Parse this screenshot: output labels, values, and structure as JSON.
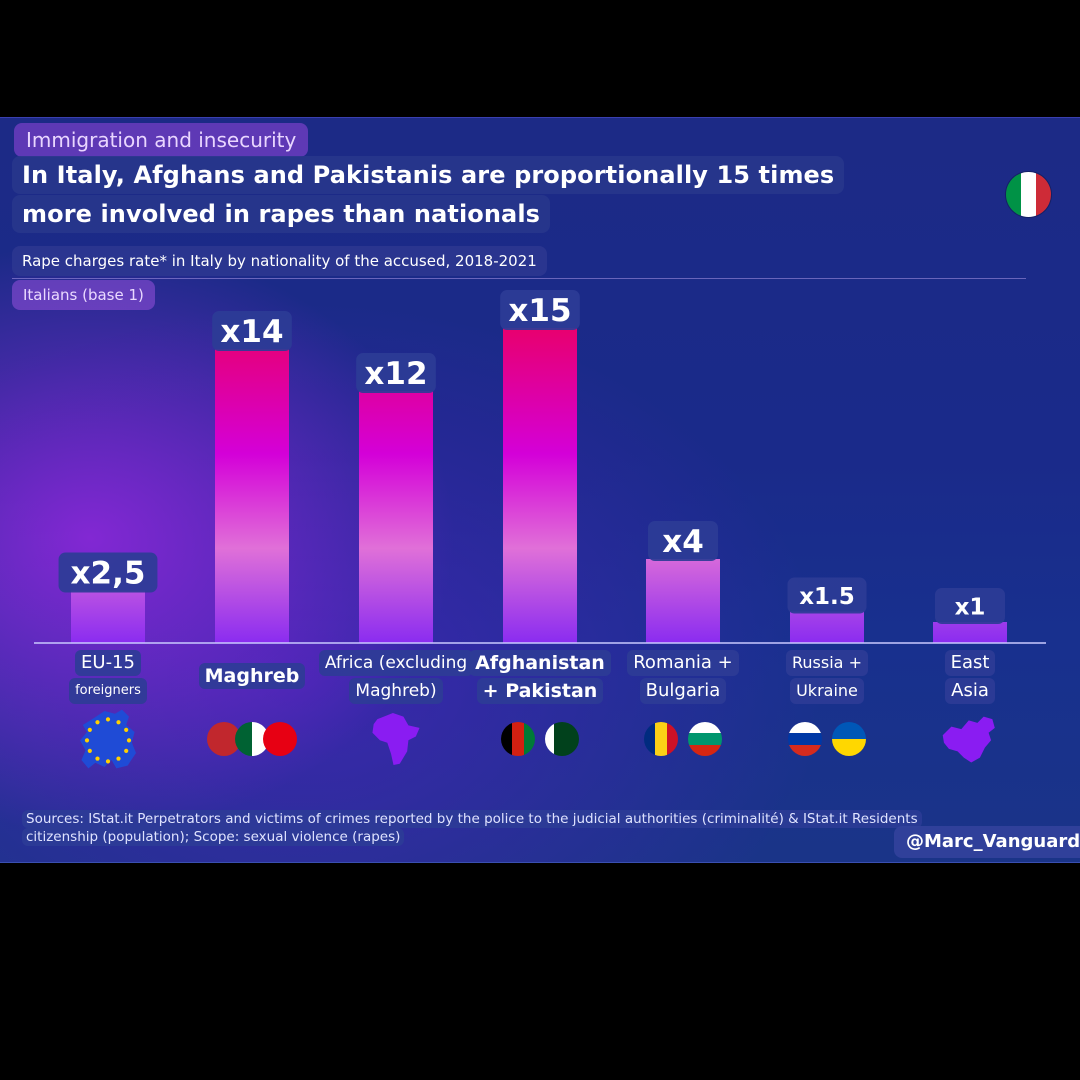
{
  "kicker": "Immigration and insecurity",
  "title_line1": "In Italy, Afghans and Pakistanis are proportionally 15 times",
  "title_line2": "more involved in rapes than nationals",
  "subtitle": "Rape charges rate* in Italy by nationality of the accused, 2018-2021",
  "baseline_label": "Italians (base 1)",
  "sources": "Sources: IStat.it Perpetrators and victims of crimes reported by the police to the judicial authorities (criminalité) & IStat.it Residents citizenship (population); Scope: sexual violence (rapes)",
  "credit": "@Marc_Vanguard",
  "colors": {
    "bar_top_high": "#e8006e",
    "bar_mid": "#d400d8",
    "bar_bottom": "#8a2cf0",
    "label_box": "#2d3c96",
    "italy_flag": [
      "#009246",
      "#ffffff",
      "#ce2b37"
    ]
  },
  "chart_data": {
    "type": "bar",
    "title": "Rape charges rate* in Italy by nationality of the accused, 2018-2021",
    "xlabel": "",
    "ylabel": "",
    "ylim": [
      0,
      15
    ],
    "categories": [
      {
        "lines": [
          "EU-15",
          "foreigners"
        ]
      },
      {
        "lines": [
          "Maghreb"
        ]
      },
      {
        "lines": [
          "Africa (excluding",
          "Maghreb)"
        ]
      },
      {
        "lines": [
          "Afghanistan",
          "+ Pakistan"
        ]
      },
      {
        "lines": [
          "Romania +",
          "Bulgaria"
        ]
      },
      {
        "lines": [
          "Russia +",
          "Ukraine"
        ]
      },
      {
        "lines": [
          "East",
          "Asia"
        ]
      }
    ],
    "values": [
      2.5,
      14,
      12,
      15,
      4,
      1.5,
      1
    ],
    "value_labels": [
      "x2,5",
      "x14",
      "x12",
      "x15",
      "x4",
      "x1.5",
      "x1"
    ],
    "icons": [
      "eu-map-icon",
      "maghreb-flags-icon",
      "africa-map-icon",
      "afghanistan-pakistan-flags-icon",
      "romania-bulgaria-flags-icon",
      "russia-ukraine-flags-icon",
      "east-asia-map-icon"
    ],
    "grid": false,
    "legend": "none"
  }
}
